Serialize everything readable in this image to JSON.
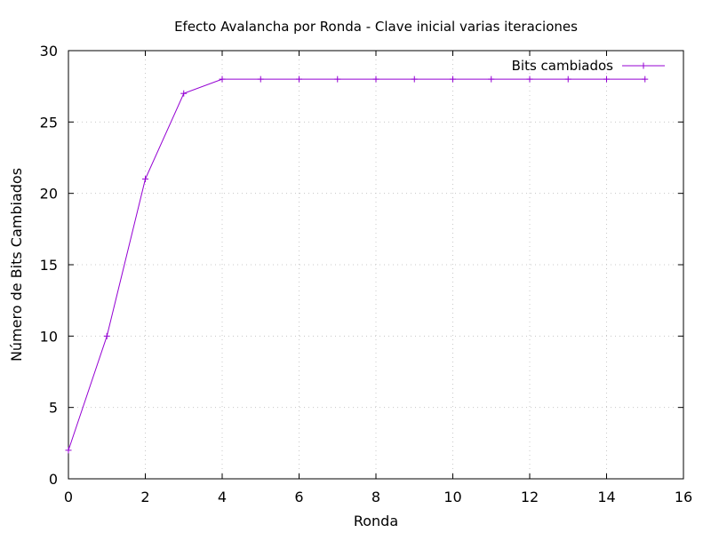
{
  "chart_data": {
    "type": "line",
    "title": "Efecto Avalancha por Ronda - Clave inicial varias iteraciones",
    "xlabel": "Ronda",
    "ylabel": "Número de Bits Cambiados",
    "xlim": [
      0,
      16
    ],
    "ylim": [
      0,
      30
    ],
    "xticks": [
      "0",
      "2",
      "4",
      "6",
      "8",
      "10",
      "12",
      "14",
      "16"
    ],
    "yticks": [
      "0",
      "5",
      "10",
      "15",
      "20",
      "25",
      "30"
    ],
    "grid": true,
    "legend_position": "top-right",
    "series": [
      {
        "name": "Bits cambiados",
        "color": "#9400d3",
        "marker": "plus",
        "x": [
          0,
          1,
          2,
          3,
          4,
          5,
          6,
          7,
          8,
          9,
          10,
          11,
          12,
          13,
          14,
          15
        ],
        "y": [
          2,
          10,
          21,
          27,
          28,
          28,
          28,
          28,
          28,
          28,
          28,
          28,
          28,
          28,
          28,
          28
        ]
      }
    ]
  }
}
